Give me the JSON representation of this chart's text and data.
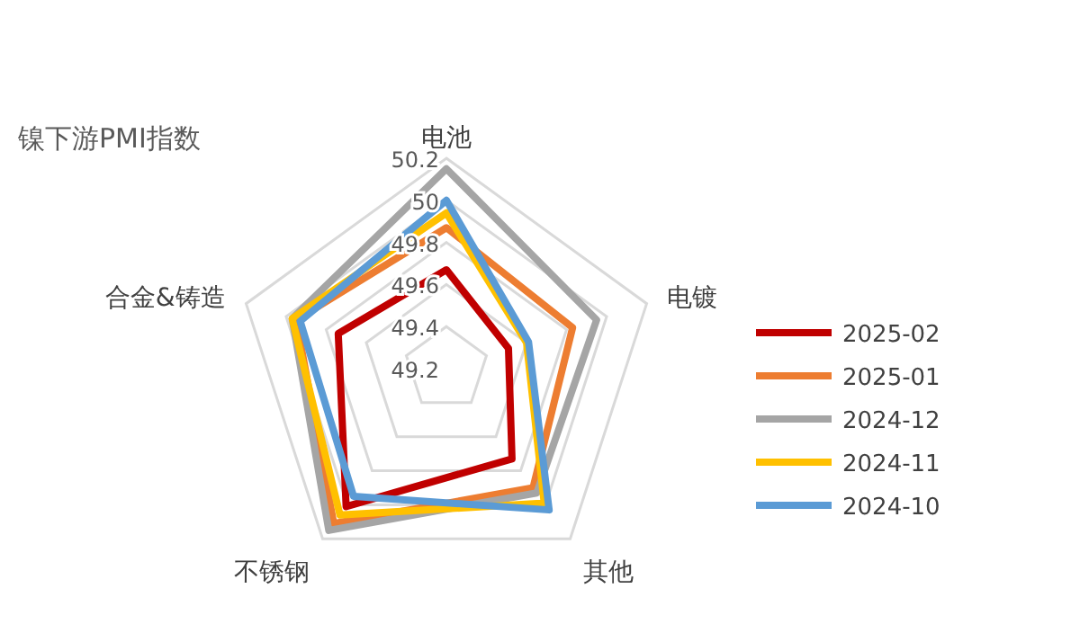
{
  "chart_data": {
    "type": "radar",
    "title": "镍下游PMI指数",
    "categories": [
      "电池",
      "电镀",
      "其他",
      "不锈钢",
      "合金&铸造"
    ],
    "ylim": [
      49.2,
      50.2
    ],
    "yticks": [
      49.2,
      49.4,
      49.6,
      49.8,
      50,
      50.2
    ],
    "grid": true,
    "legend": "right",
    "line_style": "solid",
    "marker": "none",
    "series": [
      {
        "name": "2025-02",
        "color": "#c00000",
        "values": [
          49.67,
          49.51,
          49.73,
          50.01,
          49.74
        ]
      },
      {
        "name": "2025-01",
        "color": "#ed7d31",
        "values": [
          49.87,
          49.83,
          49.9,
          50.11,
          49.95
        ]
      },
      {
        "name": "2024-12",
        "color": "#a5a5a5",
        "values": [
          50.15,
          49.95,
          49.93,
          50.15,
          49.97
        ]
      },
      {
        "name": "2024-11",
        "color": "#ffc000",
        "values": [
          49.94,
          49.6,
          49.99,
          50.06,
          49.97
        ]
      },
      {
        "name": "2024-10",
        "color": "#5b9bd5",
        "values": [
          50.0,
          49.61,
          50.03,
          49.95,
          49.93
        ]
      }
    ]
  }
}
